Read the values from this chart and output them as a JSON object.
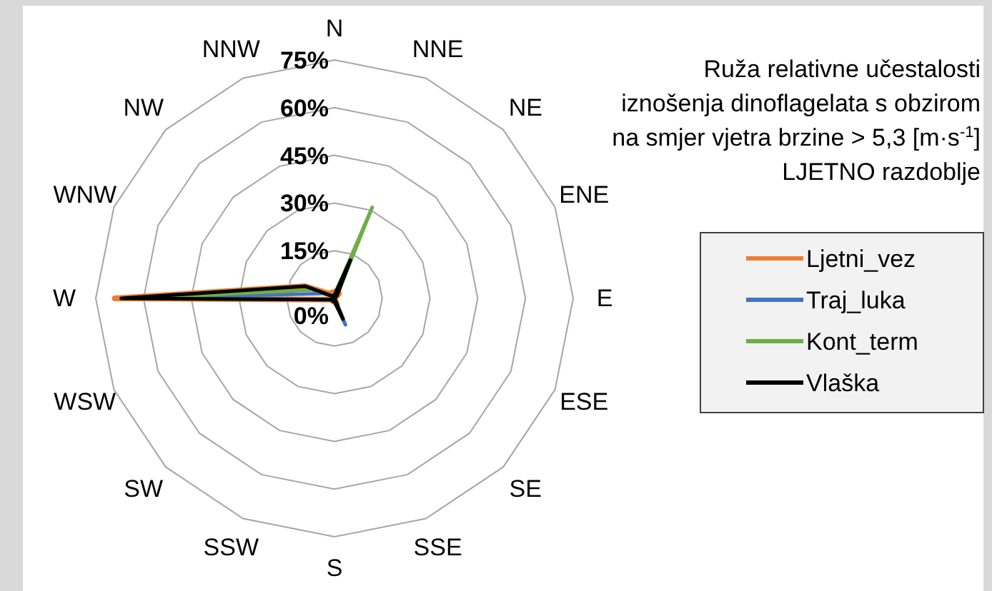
{
  "chart_data": {
    "type": "radar",
    "title": "Ruža relativne učestalosti\niznošenja dinoflagelata s obzirom\nna smjer vjetra brzine > 5,3 [m·s$^{-1}$]\nLJETNO razdoblje",
    "categories": [
      "N",
      "NNE",
      "NE",
      "ENE",
      "E",
      "ESE",
      "SE",
      "SSE",
      "S",
      "SSW",
      "SW",
      "WSW",
      "W",
      "WNW",
      "NW",
      "NNW"
    ],
    "ylim": [
      0,
      75
    ],
    "yticks": [
      {
        "value": 0,
        "label": "0%"
      },
      {
        "value": 15,
        "label": "15%"
      },
      {
        "value": 30,
        "label": "30%"
      },
      {
        "value": 45,
        "label": "45%"
      },
      {
        "value": 60,
        "label": "60%"
      },
      {
        "value": 75,
        "label": "75%"
      }
    ],
    "grid": true,
    "legend": "right",
    "series": [
      {
        "name": "Ljetni_vez",
        "color": "#ed7d31",
        "values": [
          2,
          3,
          2,
          0,
          0,
          0,
          0,
          2,
          1,
          1,
          1,
          1,
          69,
          10,
          2,
          2
        ]
      },
      {
        "name": "Traj_luka",
        "color": "#4472c4",
        "values": [
          1,
          14,
          1,
          0,
          0,
          0,
          0,
          9,
          1,
          1,
          1,
          1,
          62,
          4,
          1,
          1
        ]
      },
      {
        "name": "Kont_term",
        "color": "#70ad47",
        "values": [
          1,
          31,
          1,
          0,
          0,
          0,
          0,
          2,
          1,
          1,
          1,
          1,
          64,
          7,
          1,
          1
        ]
      },
      {
        "name": "Vlaška",
        "color": "#000000",
        "values": [
          1,
          13,
          1,
          0,
          0,
          0,
          0,
          7,
          1,
          1,
          1,
          1,
          67,
          10,
          1,
          1
        ]
      }
    ]
  }
}
